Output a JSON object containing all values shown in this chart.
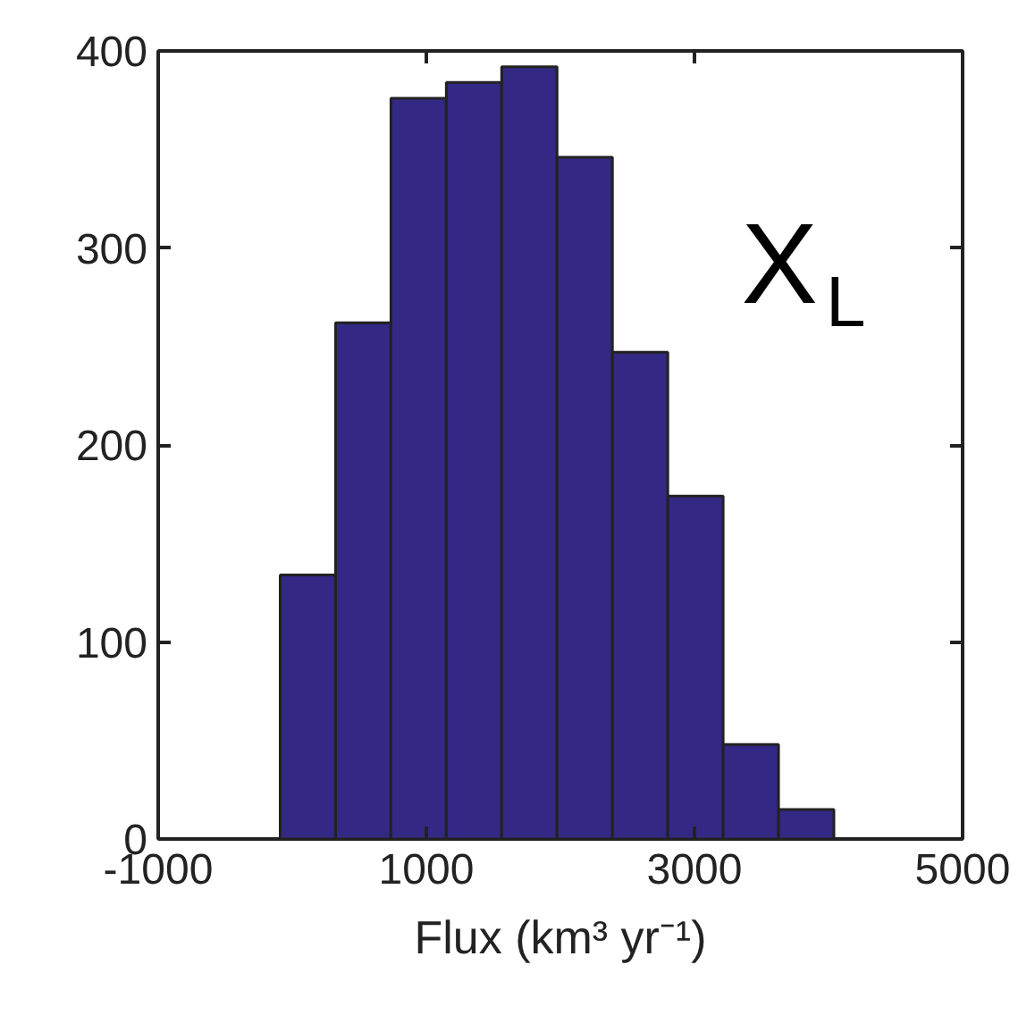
{
  "chart_data": {
    "type": "histogram",
    "bins": [
      -90,
      323,
      736,
      1149,
      1562,
      1975,
      2388,
      2801,
      3214,
      3627,
      4040
    ],
    "values": [
      134,
      262,
      376,
      384,
      392,
      346,
      247,
      174,
      48,
      15
    ],
    "color": "#332884",
    "xlabel": "Flux (km³ yr⁻¹)",
    "xlim": [
      -1000,
      5000
    ],
    "xticks": [
      -1000,
      1000,
      3000,
      5000
    ],
    "ylim": [
      0,
      400
    ],
    "yticks": [
      0,
      100,
      200,
      300,
      400
    ],
    "annotations": [
      "X$_{L}$"
    ],
    "grid": false
  }
}
